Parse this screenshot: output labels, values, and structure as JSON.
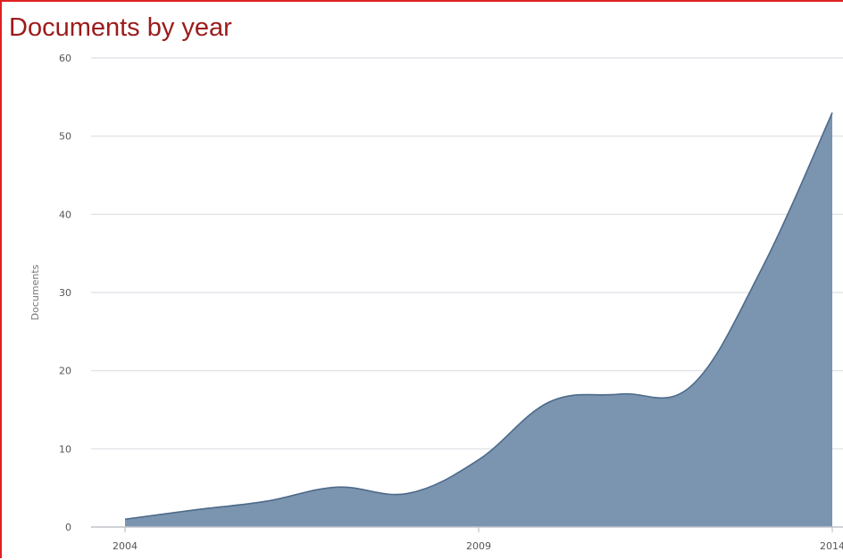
{
  "chart_data": {
    "type": "area",
    "title": "Documents by year",
    "xlabel": "",
    "ylabel": "Documents",
    "x": [
      2004,
      2005,
      2006,
      2007,
      2008,
      2009,
      2010,
      2011,
      2012,
      2013,
      2014
    ],
    "values": [
      1,
      2.2,
      3.3,
      5.1,
      4.3,
      8.6,
      16,
      17,
      18,
      33,
      53
    ],
    "ylim": [
      0,
      60
    ],
    "yticks": [
      0,
      10,
      20,
      30,
      40,
      50,
      60
    ],
    "xticks": [
      "2004",
      "2009",
      "2014"
    ],
    "grid": "horizontal",
    "legend": "none",
    "colors": {
      "fill": "#7b95b0",
      "stroke": "#4d6a8a",
      "grid": "#dcdfe3",
      "title": "#9b1b1b",
      "frame": "#e02020"
    }
  }
}
